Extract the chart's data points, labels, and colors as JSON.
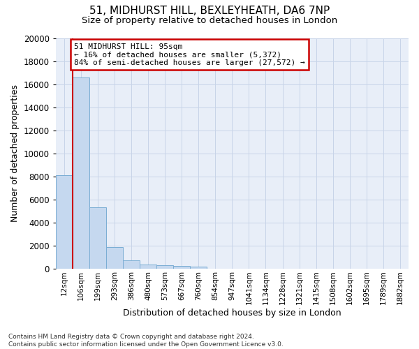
{
  "title1": "51, MIDHURST HILL, BEXLEYHEATH, DA6 7NP",
  "title2": "Size of property relative to detached houses in London",
  "xlabel": "Distribution of detached houses by size in London",
  "ylabel": "Number of detached properties",
  "categories": [
    "12sqm",
    "106sqm",
    "199sqm",
    "293sqm",
    "386sqm",
    "480sqm",
    "573sqm",
    "667sqm",
    "760sqm",
    "854sqm",
    "947sqm",
    "1041sqm",
    "1134sqm",
    "1228sqm",
    "1321sqm",
    "1415sqm",
    "1508sqm",
    "1602sqm",
    "1695sqm",
    "1789sqm",
    "1882sqm"
  ],
  "values": [
    8100,
    16600,
    5350,
    1850,
    750,
    350,
    270,
    220,
    200,
    0,
    0,
    0,
    0,
    0,
    0,
    0,
    0,
    0,
    0,
    0,
    0
  ],
  "bar_color": "#c5d8ef",
  "bar_edge_color": "#7aadd4",
  "grid_color": "#c8d4e8",
  "background_color": "#e8eef8",
  "annotation_text": "51 MIDHURST HILL: 95sqm\n← 16% of detached houses are smaller (5,372)\n84% of semi-detached houses are larger (27,572) →",
  "annotation_box_facecolor": "#ffffff",
  "annotation_box_edgecolor": "#cc0000",
  "property_line_color": "#cc0000",
  "ylim": [
    0,
    20000
  ],
  "yticks": [
    0,
    2000,
    4000,
    6000,
    8000,
    10000,
    12000,
    14000,
    16000,
    18000,
    20000
  ],
  "footnote": "Contains HM Land Registry data © Crown copyright and database right 2024.\nContains public sector information licensed under the Open Government Licence v3.0.",
  "title1_fontsize": 11,
  "title2_fontsize": 9.5,
  "xlabel_fontsize": 9,
  "ylabel_fontsize": 9,
  "annotation_fontsize": 8,
  "footnote_fontsize": 6.5
}
